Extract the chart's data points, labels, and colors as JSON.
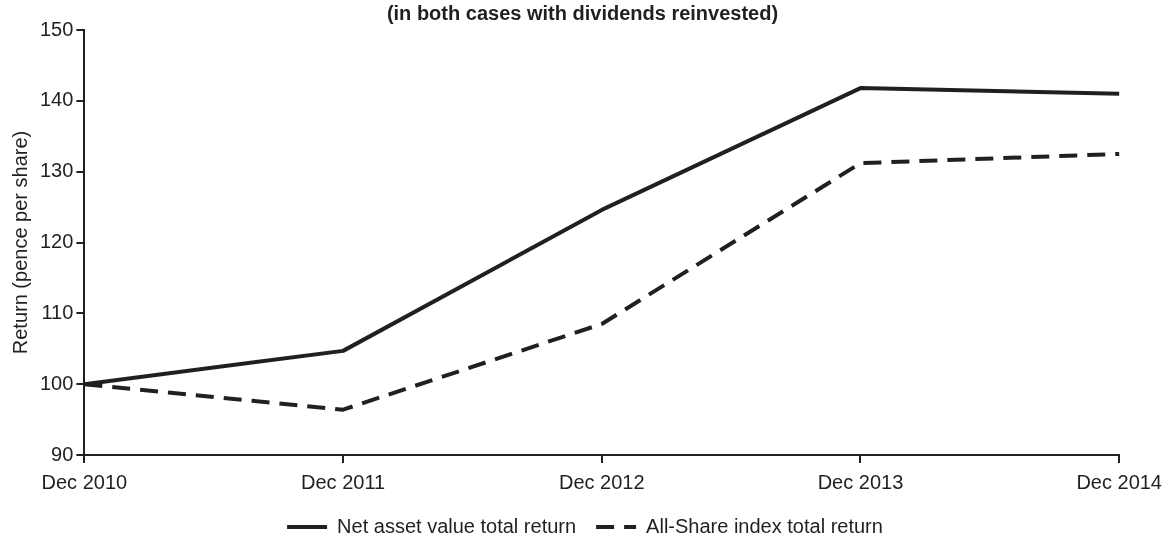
{
  "chart_data": {
    "type": "line",
    "title": "(in both cases with dividends reinvested)",
    "ylabel": "Return (pence per share)",
    "categories": [
      "Dec 2010",
      "Dec 2011",
      "Dec 2012",
      "Dec 2013",
      "Dec 2014"
    ],
    "series": [
      {
        "name": "Net asset value total return",
        "color": "#231f20",
        "line_style": "solid",
        "values": [
          100,
          104.7,
          124.6,
          141.8,
          141
        ]
      },
      {
        "name": "All-Share index total return",
        "color": "#231f20",
        "line_style": "dashed",
        "values": [
          100,
          96.4,
          108.5,
          131.2,
          132.5
        ]
      }
    ],
    "ylim": [
      90,
      150
    ],
    "yticks": [
      90,
      100,
      110,
      120,
      130,
      140,
      150
    ],
    "grid": false,
    "legend": "bottom",
    "marker": "none"
  }
}
